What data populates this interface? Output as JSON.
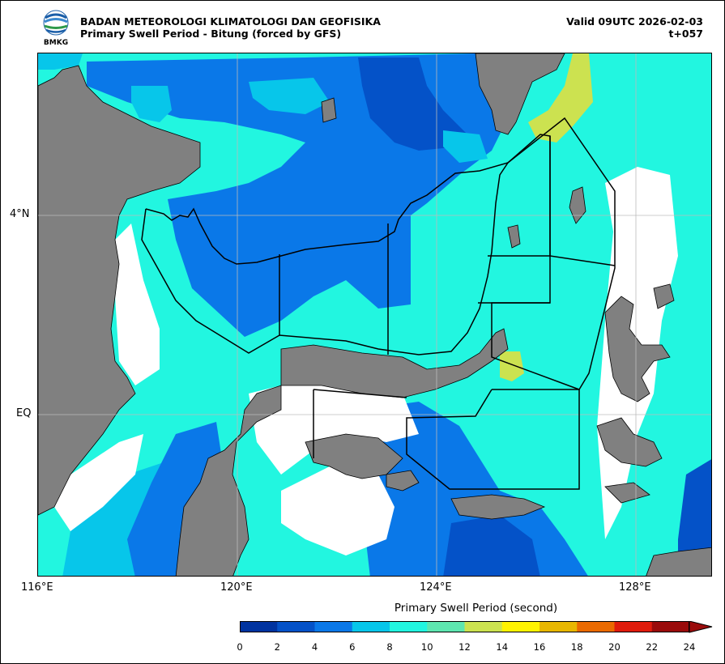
{
  "header": {
    "agency": "BADAN METEOROLOGI KLIMATOLOGI DAN GEOFISIKA",
    "product": "Primary Swell Period - Bitung (forced by GFS)",
    "valid": "Valid 09UTC 2026-02-03",
    "lead": "t+057",
    "logo_text": "BMKG"
  },
  "axes": {
    "lon_labels": [
      "116°E",
      "120°E",
      "124°E",
      "128°E"
    ],
    "lat_labels": [
      "4°N",
      "EQ"
    ]
  },
  "colorbar": {
    "title": "Primary Swell Period (second)",
    "ticks": [
      "0",
      "2",
      "4",
      "6",
      "8",
      "10",
      "12",
      "14",
      "16",
      "18",
      "20",
      "22",
      "24"
    ],
    "colors": [
      "#0033a0",
      "#0452c8",
      "#0a78e8",
      "#07c6ea",
      "#22f6e0",
      "#5ee6b0",
      "#cce250",
      "#fff300",
      "#e8b700",
      "#ea6a00",
      "#e01c0c",
      "#9a0b0b"
    ]
  },
  "map_colors": {
    "land": "#808080",
    "mask": "#ffffff",
    "p0_2": "#0033a0",
    "p2_4": "#0452c8",
    "p4_6": "#0a78e8",
    "p6_8": "#07c6ea",
    "p8_10": "#22f6e0",
    "p12_14": "#cce250"
  }
}
